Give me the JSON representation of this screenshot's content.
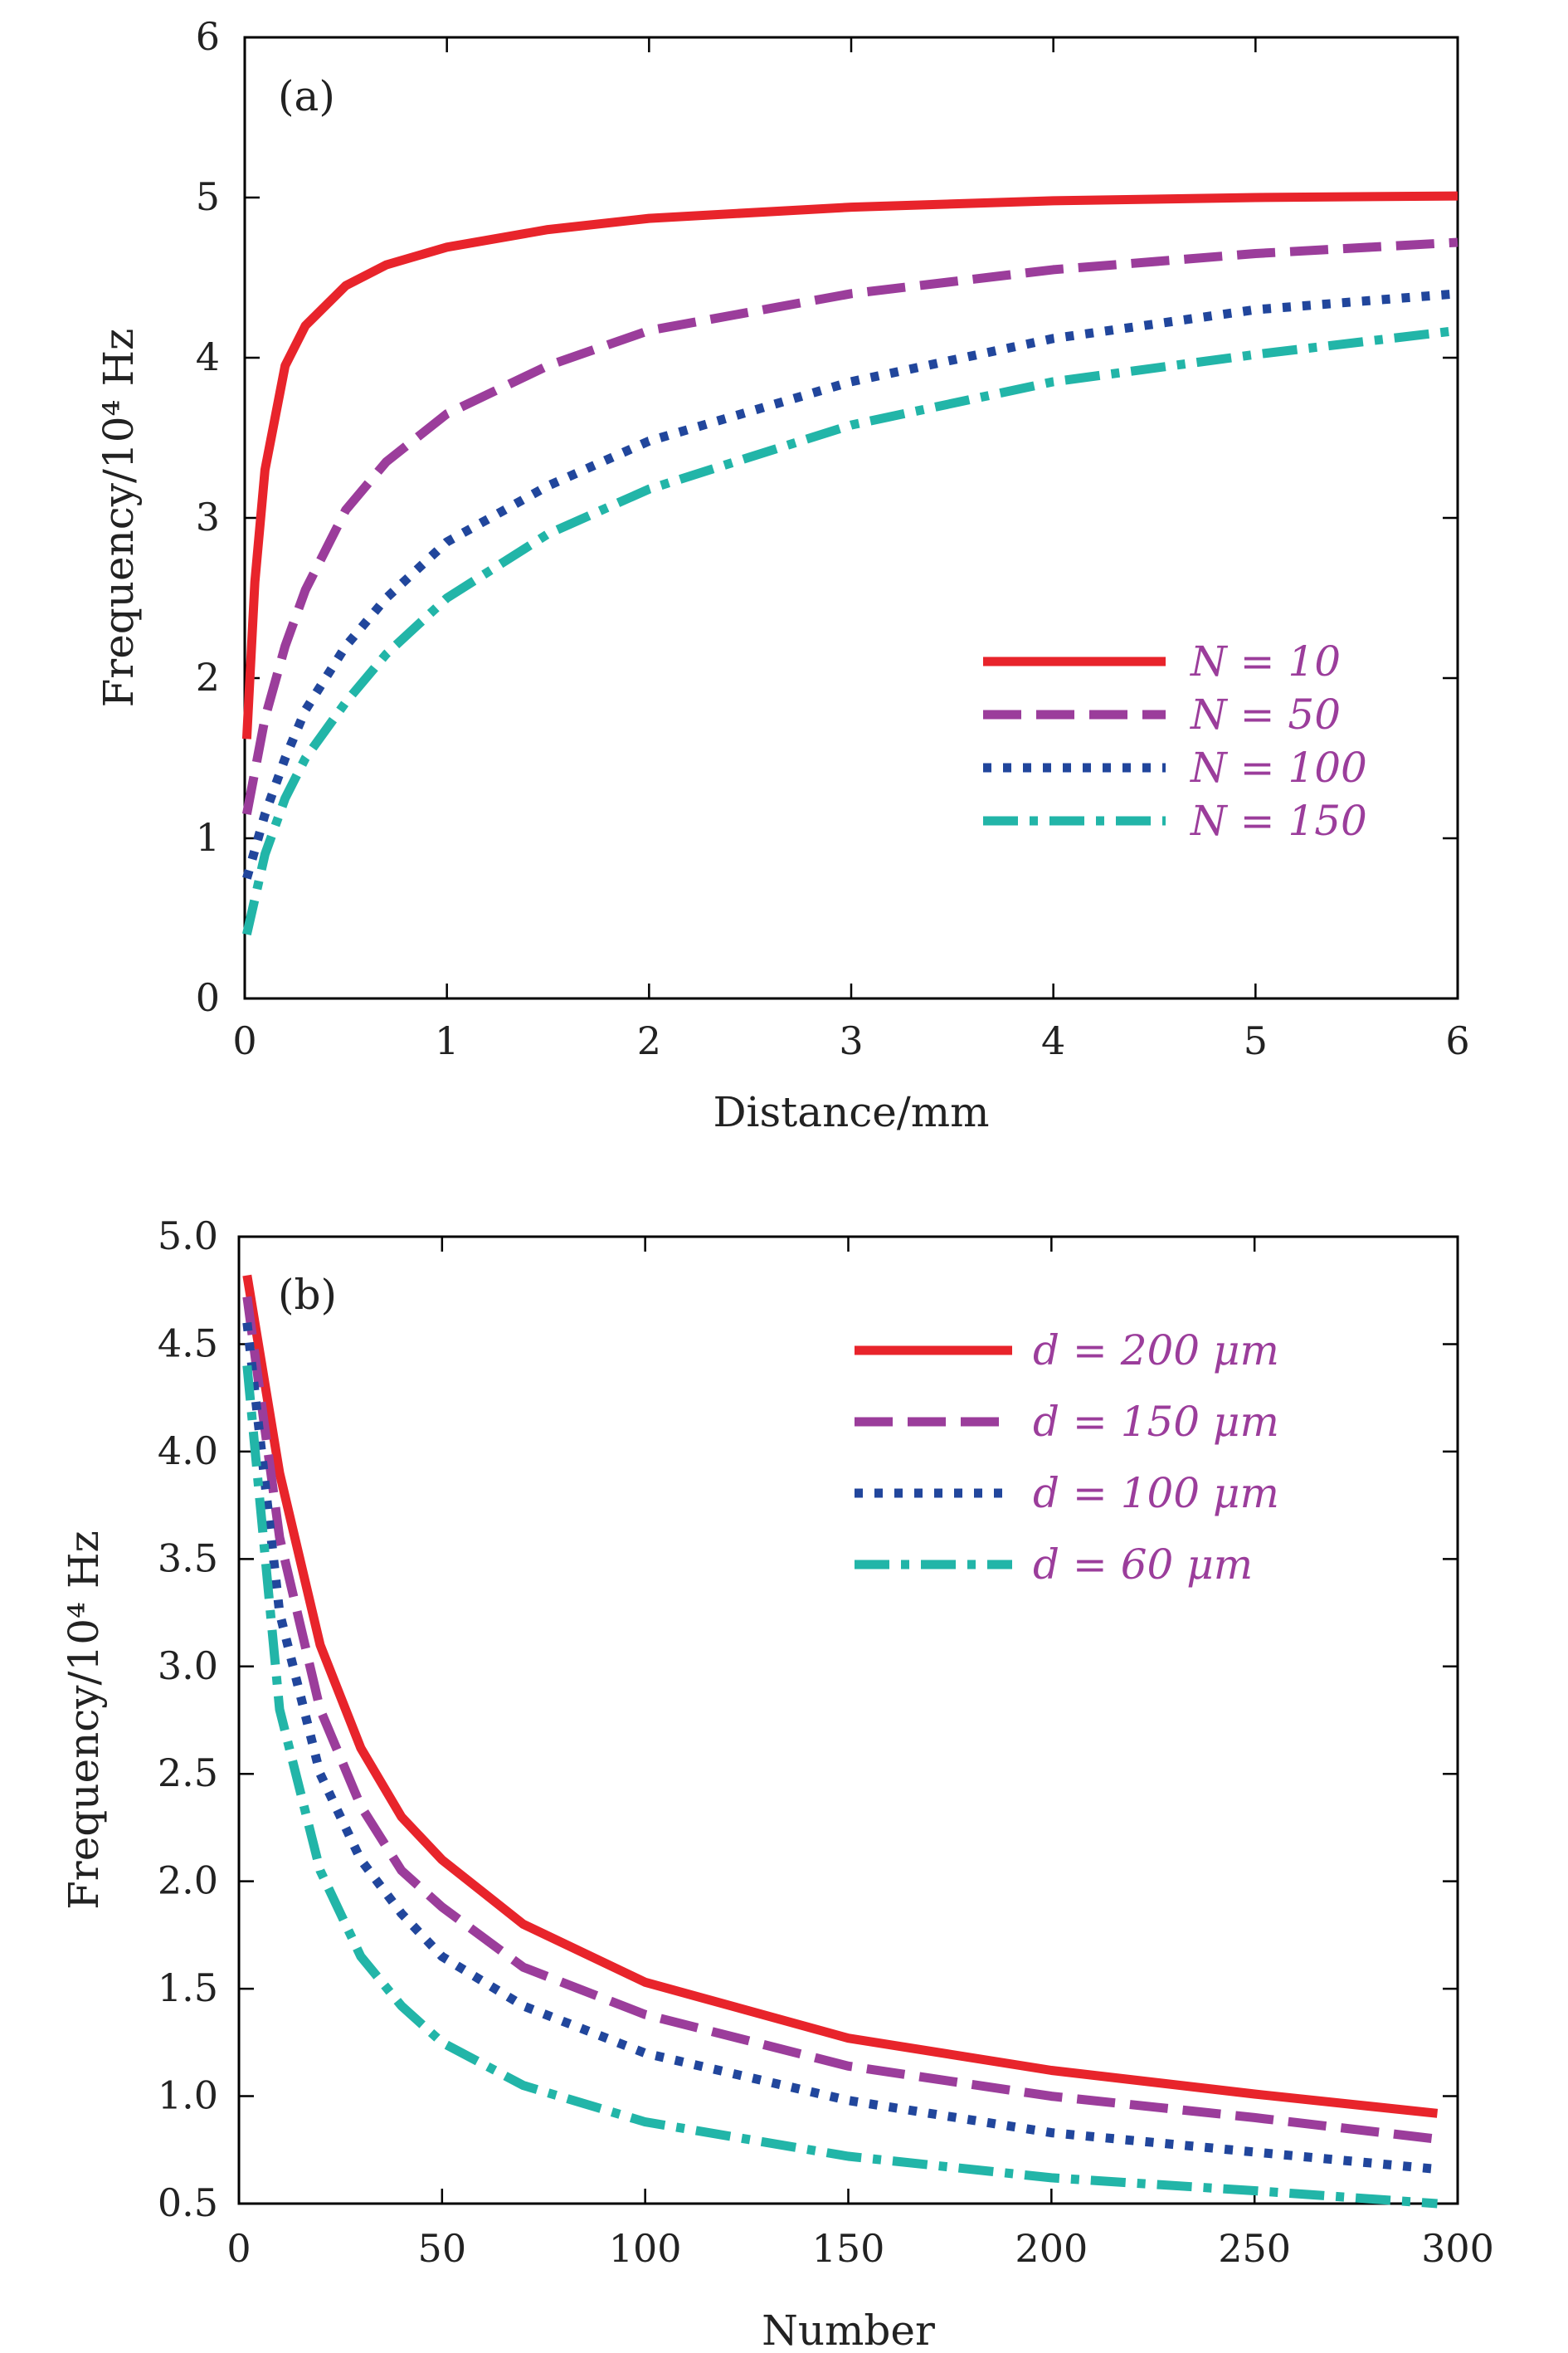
{
  "colors": {
    "red": "#E8242B",
    "purple": "#9B3D9B",
    "blue": "#21469C",
    "teal": "#22B5A8"
  },
  "chart_data": [
    {
      "type": "line",
      "panel_label": "(a)",
      "xlabel": "Distance/mm",
      "ylabel": "Frequency/10⁴ Hz",
      "xlim": [
        0,
        6
      ],
      "ylim": [
        0,
        6
      ],
      "xticks": [
        "0",
        "1",
        "2",
        "3",
        "4",
        "5",
        "6"
      ],
      "yticks": [
        "0",
        "1",
        "2",
        "3",
        "4",
        "5",
        "6"
      ],
      "legend_position": "lower-right",
      "series": [
        {
          "name": "N = 10",
          "style": "solid",
          "color": "#E8242B",
          "x": [
            0.01,
            0.05,
            0.1,
            0.2,
            0.3,
            0.5,
            0.7,
            1.0,
            1.5,
            2.0,
            3.0,
            4.0,
            5.0,
            6.0
          ],
          "y": [
            1.62,
            2.6,
            3.3,
            3.95,
            4.2,
            4.45,
            4.58,
            4.69,
            4.8,
            4.87,
            4.94,
            4.98,
            5.0,
            5.01
          ]
        },
        {
          "name": "N = 50",
          "style": "dashed",
          "color": "#9B3D9B",
          "x": [
            0.01,
            0.1,
            0.2,
            0.3,
            0.5,
            0.7,
            1.0,
            1.5,
            2.0,
            3.0,
            4.0,
            5.0,
            6.0
          ],
          "y": [
            1.15,
            1.75,
            2.2,
            2.55,
            3.05,
            3.35,
            3.65,
            3.95,
            4.17,
            4.4,
            4.55,
            4.65,
            4.72
          ]
        },
        {
          "name": "N = 100",
          "style": "dotted",
          "color": "#21469C",
          "x": [
            0.01,
            0.1,
            0.2,
            0.3,
            0.5,
            0.7,
            1.0,
            1.5,
            2.0,
            3.0,
            4.0,
            5.0,
            6.0
          ],
          "y": [
            0.75,
            1.15,
            1.5,
            1.8,
            2.2,
            2.5,
            2.85,
            3.2,
            3.48,
            3.85,
            4.12,
            4.3,
            4.4
          ]
        },
        {
          "name": "N = 150",
          "style": "dashdot",
          "color": "#22B5A8",
          "x": [
            0.01,
            0.1,
            0.2,
            0.3,
            0.5,
            0.7,
            1.0,
            1.5,
            2.0,
            3.0,
            4.0,
            5.0,
            6.0
          ],
          "y": [
            0.4,
            0.9,
            1.25,
            1.5,
            1.85,
            2.15,
            2.5,
            2.9,
            3.18,
            3.58,
            3.85,
            4.02,
            4.17
          ]
        }
      ],
      "legend": [
        "N = 10",
        "N = 50",
        "N = 100",
        "N = 150"
      ]
    },
    {
      "type": "line",
      "panel_label": "(b)",
      "xlabel": "Number",
      "ylabel": "Frequency/10⁴ Hz",
      "xlim": [
        0,
        300
      ],
      "ylim": [
        0.5,
        5.0
      ],
      "xticks": [
        "0",
        "50",
        "100",
        "150",
        "200",
        "250",
        "300"
      ],
      "yticks": [
        "0.5",
        "1.0",
        "1.5",
        "2.0",
        "2.5",
        "3.0",
        "3.5",
        "4.0",
        "4.5",
        "5.0"
      ],
      "legend_position": "top-right",
      "series": [
        {
          "name": "d = 200 μm",
          "style": "solid",
          "color": "#E8242B",
          "x": [
            2,
            10,
            20,
            30,
            40,
            50,
            70,
            100,
            150,
            200,
            250,
            295
          ],
          "y": [
            4.82,
            3.9,
            3.1,
            2.62,
            2.3,
            2.1,
            1.8,
            1.53,
            1.27,
            1.12,
            1.01,
            0.92
          ]
        },
        {
          "name": "d = 150 μm",
          "style": "dashed",
          "color": "#9B3D9B",
          "x": [
            2,
            10,
            20,
            30,
            40,
            50,
            70,
            100,
            150,
            200,
            250,
            295
          ],
          "y": [
            4.72,
            3.6,
            2.8,
            2.35,
            2.05,
            1.88,
            1.6,
            1.38,
            1.14,
            1.0,
            0.9,
            0.8
          ]
        },
        {
          "name": "d = 100 μm",
          "style": "dotted",
          "color": "#21469C",
          "x": [
            2,
            10,
            20,
            30,
            40,
            50,
            70,
            100,
            150,
            200,
            250,
            295
          ],
          "y": [
            4.6,
            3.25,
            2.5,
            2.1,
            1.85,
            1.65,
            1.42,
            1.2,
            0.98,
            0.83,
            0.74,
            0.66
          ]
        },
        {
          "name": "d = 60 μm",
          "style": "dashdot",
          "color": "#22B5A8",
          "x": [
            2,
            10,
            20,
            30,
            40,
            50,
            70,
            100,
            150,
            200,
            250,
            295
          ],
          "y": [
            4.4,
            2.8,
            2.05,
            1.65,
            1.42,
            1.25,
            1.05,
            0.88,
            0.72,
            0.62,
            0.56,
            0.5
          ]
        }
      ],
      "legend": [
        "d = 200 μm",
        "d = 150 μm",
        "d = 100 μm",
        "d = 60 μm"
      ]
    }
  ]
}
